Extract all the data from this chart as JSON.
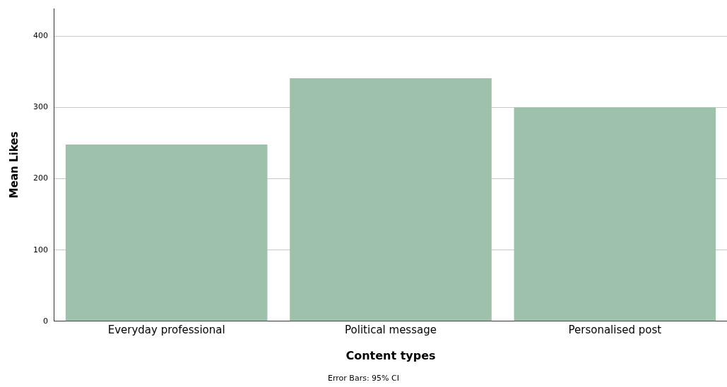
{
  "chart_data": {
    "type": "bar",
    "xlabel": "Content types",
    "ylabel": "Mean Likes",
    "categories": [
      "Everyday professional",
      "Political message",
      "Personalised post"
    ],
    "values": [
      248,
      341,
      300
    ],
    "color": "#9dc1ab",
    "ylim": [
      0,
      439
    ],
    "yticks": [
      0,
      100,
      200,
      300,
      400
    ],
    "grid": "y",
    "legend": false,
    "annotations": [
      "Error Bars: 95% CI"
    ]
  }
}
